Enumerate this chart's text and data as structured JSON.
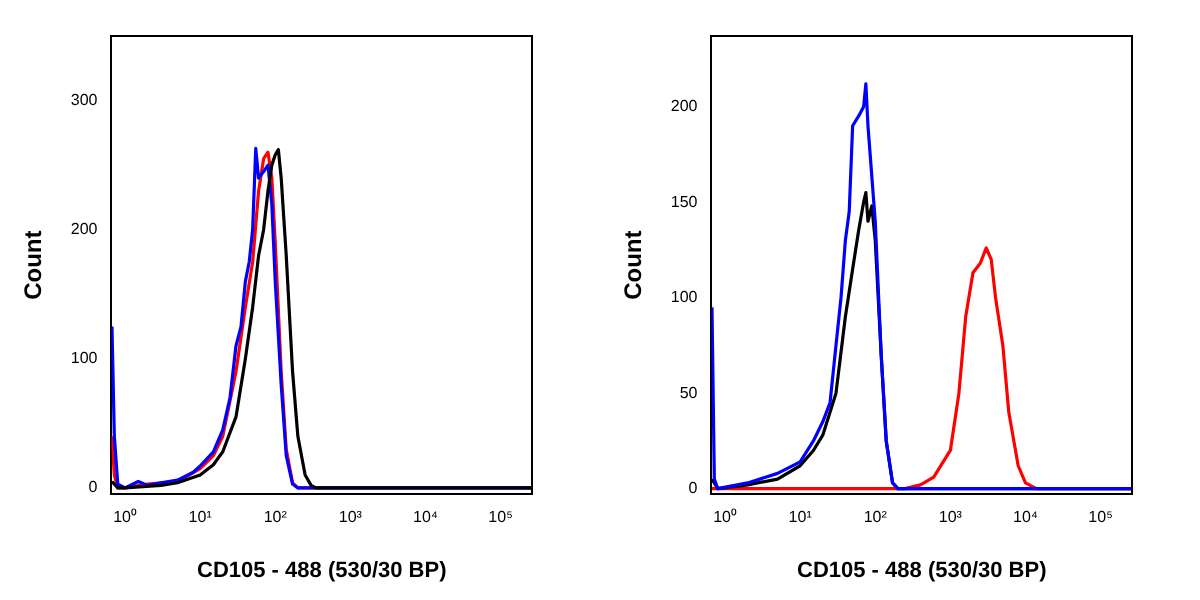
{
  "chart_data": [
    {
      "type": "line",
      "xlabel": "CD105 - 488 (530/30 BP)",
      "ylabel": "Count",
      "log": "x",
      "grid": false,
      "legend": false,
      "marker": "none",
      "line_style": "solid",
      "xlim": [
        0.66,
        262144
      ],
      "xticks": [
        {
          "value": 1,
          "label": "10⁰"
        },
        {
          "value": 10,
          "label": "10¹"
        },
        {
          "value": 100,
          "label": "10²"
        },
        {
          "value": 1000,
          "label": "10³"
        },
        {
          "value": 10000,
          "label": "10⁴"
        },
        {
          "value": 100000,
          "label": "10⁵"
        }
      ],
      "ylim": [
        -5,
        350
      ],
      "yticks": [
        0,
        100,
        200,
        300
      ],
      "series": [
        {
          "color": "#000000",
          "x": [
            0.67,
            0.8,
            1,
            3,
            5,
            10,
            15,
            20,
            30,
            40,
            50,
            60,
            70,
            80,
            90,
            100,
            110,
            120,
            140,
            170,
            200,
            250,
            300,
            350,
            262000
          ],
          "values": [
            5,
            0,
            0,
            2,
            4,
            10,
            18,
            28,
            55,
            100,
            140,
            180,
            200,
            230,
            250,
            258,
            262,
            240,
            180,
            90,
            40,
            10,
            2,
            0,
            0
          ]
        },
        {
          "color": "#0000ff",
          "x": [
            0.67,
            0.72,
            0.8,
            1,
            1.5,
            2,
            3,
            5,
            8,
            10,
            15,
            20,
            25,
            30,
            35,
            40,
            45,
            50,
            55,
            60,
            70,
            80,
            90,
            100,
            120,
            140,
            170,
            200,
            262000
          ],
          "values": [
            125,
            40,
            3,
            0,
            5,
            2,
            4,
            6,
            12,
            17,
            28,
            45,
            70,
            110,
            125,
            160,
            175,
            200,
            263,
            240,
            245,
            250,
            220,
            160,
            80,
            25,
            3,
            0,
            0
          ]
        },
        {
          "color": "#ff0000",
          "x": [
            0.67,
            0.72,
            0.8,
            1,
            2,
            5,
            10,
            15,
            20,
            30,
            40,
            50,
            60,
            70,
            80,
            90,
            100,
            120,
            140,
            170,
            200,
            262000
          ],
          "values": [
            40,
            10,
            0,
            0,
            3,
            5,
            15,
            25,
            40,
            90,
            140,
            175,
            230,
            255,
            260,
            240,
            190,
            90,
            30,
            4,
            0,
            0
          ]
        }
      ]
    },
    {
      "type": "line",
      "xlabel": "CD105 - 488 (530/30 BP)",
      "ylabel": "Count",
      "log": "x",
      "grid": false,
      "legend": false,
      "marker": "none",
      "line_style": "solid",
      "xlim": [
        0.66,
        262144
      ],
      "xticks": [
        {
          "value": 1,
          "label": "10⁰"
        },
        {
          "value": 10,
          "label": "10¹"
        },
        {
          "value": 100,
          "label": "10²"
        },
        {
          "value": 1000,
          "label": "10³"
        },
        {
          "value": 10000,
          "label": "10⁴"
        },
        {
          "value": 100000,
          "label": "10⁵"
        }
      ],
      "ylim": [
        -3,
        237
      ],
      "yticks": [
        0,
        50,
        100,
        150,
        200
      ],
      "series": [
        {
          "color": "#0000ff",
          "x": [
            0.67,
            0.72,
            0.8,
            2,
            5,
            10,
            15,
            20,
            25,
            30,
            35,
            40,
            45,
            50,
            60,
            70,
            75,
            80,
            100,
            120,
            140,
            170,
            200,
            262000
          ],
          "values": [
            95,
            5,
            0,
            3,
            8,
            14,
            25,
            35,
            45,
            75,
            100,
            130,
            145,
            190,
            195,
            200,
            212,
            190,
            140,
            70,
            25,
            3,
            0,
            0
          ]
        },
        {
          "color": "#000000",
          "x": [
            0.67,
            0.8,
            2,
            5,
            10,
            15,
            20,
            30,
            40,
            50,
            60,
            70,
            75,
            80,
            90,
            100,
            120,
            140,
            170,
            200,
            262000
          ],
          "values": [
            5,
            0,
            2,
            5,
            12,
            20,
            28,
            50,
            90,
            115,
            135,
            150,
            155,
            140,
            148,
            130,
            70,
            25,
            3,
            0,
            0
          ]
        },
        {
          "color": "#ff0000",
          "x": [
            0.67,
            250,
            400,
            600,
            1000,
            1300,
            1600,
            2000,
            2500,
            3000,
            3500,
            4000,
            5000,
            6000,
            8000,
            10000,
            14000,
            262000
          ],
          "values": [
            0,
            0,
            2,
            6,
            20,
            50,
            90,
            113,
            118,
            126,
            120,
            100,
            75,
            40,
            12,
            3,
            0,
            0
          ]
        }
      ]
    }
  ]
}
